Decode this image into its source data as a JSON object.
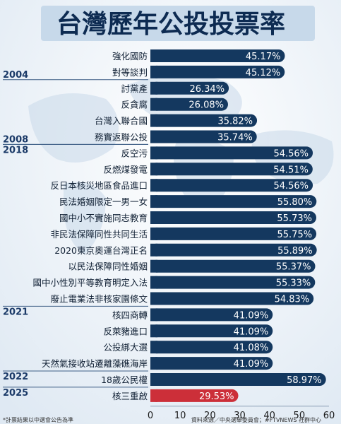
{
  "page": {
    "title": "台灣歷年公投投票率",
    "footnote": "*計票結果以中選會公告為準",
    "source": "資料來源／中央選舉委員會；#FTVNEWS 社群中心"
  },
  "colors": {
    "bar": "#14385f",
    "highlight_bar": "#cc2f39",
    "background": "#eef3f8",
    "title_box": "#c7d9ea",
    "title_text": "#0d2b52",
    "label_text": "#0f1f33",
    "year_text": "#1b3a68"
  },
  "chart_data": {
    "type": "bar",
    "orientation": "horizontal",
    "categories": [
      "強化國防",
      "對等談判",
      "討黨產",
      "反貪腐",
      "台灣入聯合國",
      "務實返聯公投",
      "反空污",
      "反燃煤發電",
      "反日本核災地區食品進口",
      "民法婚姻限定一男一女",
      "國中小不實施同志教育",
      "非民法保障同性共同生活",
      "2020東京奧運台灣正名",
      "以民法保障同性婚姻",
      "國中小性別平等教育明定入法",
      "廢止電業法非核家園條文",
      "核四商轉",
      "反萊豬進口",
      "公投綁大選",
      "天然氣接收站遷離藻礁海岸",
      "18歲公民權",
      "核三重啟"
    ],
    "values": [
      45.17,
      45.12,
      26.34,
      26.08,
      35.82,
      35.74,
      54.56,
      54.51,
      54.56,
      55.8,
      55.73,
      55.75,
      55.89,
      55.37,
      55.33,
      54.83,
      41.09,
      41.09,
      41.08,
      41.09,
      58.97,
      29.53
    ],
    "value_labels": [
      "45.17%",
      "45.12%",
      "26.34%",
      "26.08%",
      "35.82%",
      "35.74%",
      "54.56%",
      "54.51%",
      "54.56%",
      "55.80%",
      "55.73%",
      "55.75%",
      "55.89%",
      "55.37%",
      "55.33%",
      "54.83%",
      "41.09%",
      "41.09%",
      "41.08%",
      "41.09%",
      "58.97%",
      "29.53%"
    ],
    "highlight_index": 21,
    "year_groups": [
      {
        "label": "2004",
        "start": 0,
        "end": 1
      },
      {
        "label": "2008",
        "start": 4,
        "end": 5
      },
      {
        "label": "2018",
        "start": 6,
        "end": 15
      },
      {
        "label": "2021",
        "start": 16,
        "end": 19
      },
      {
        "label": "2022",
        "start": 20,
        "end": 20
      },
      {
        "label": "2025",
        "start": 21,
        "end": 21
      }
    ],
    "xlim": [
      0,
      60
    ],
    "xticks": [
      0,
      10,
      20,
      30,
      40,
      50,
      60
    ],
    "grid": false
  }
}
